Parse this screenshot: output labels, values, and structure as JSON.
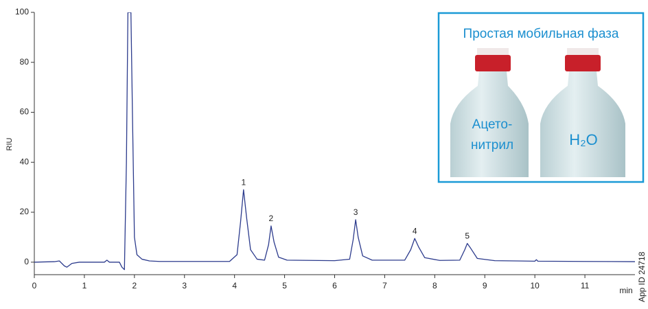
{
  "chart_data": {
    "type": "line",
    "ylabel": "RIU",
    "xlabel": "min",
    "x": [
      0,
      0.4,
      0.5,
      0.6,
      0.65,
      0.75,
      0.9,
      1.4,
      1.45,
      1.5,
      1.7,
      1.75,
      1.8,
      1.84,
      1.87,
      1.9,
      1.93,
      1.96,
      2.0,
      2.05,
      2.15,
      2.3,
      2.5,
      3,
      3.9,
      4.05,
      4.12,
      4.18,
      4.24,
      4.32,
      4.45,
      4.6,
      4.68,
      4.73,
      4.79,
      4.88,
      5.05,
      6.0,
      6.3,
      6.37,
      6.42,
      6.47,
      6.56,
      6.75,
      7.4,
      7.52,
      7.6,
      7.68,
      7.8,
      8.1,
      8.5,
      8.6,
      8.65,
      8.72,
      8.85,
      9.2,
      10,
      10.03,
      10.06,
      11,
      12
    ],
    "series": [
      {
        "color": "#2b3a8c",
        "values": [
          0,
          0.2,
          0.5,
          -1.5,
          -2,
          -0.5,
          0,
          0,
          0.8,
          0,
          0,
          -2,
          -3,
          40,
          100,
          100,
          100,
          60,
          10,
          3,
          1.2,
          0.5,
          0.3,
          0.3,
          0.3,
          3,
          16,
          29,
          18,
          5,
          1.2,
          0.8,
          7,
          14.5,
          8,
          2,
          0.8,
          0.6,
          1.2,
          9,
          17,
          10,
          2.5,
          0.8,
          0.8,
          5,
          9.5,
          6,
          1.8,
          0.7,
          0.8,
          5,
          7.5,
          5.5,
          1.5,
          0.6,
          0.4,
          1,
          0.4,
          0.3,
          0.2
        ]
      }
    ],
    "xlim": [
      0,
      12
    ],
    "ylim": [
      -5,
      100
    ],
    "xticks": [
      0,
      1,
      2,
      3,
      4,
      5,
      6,
      7,
      8,
      9,
      10,
      11
    ],
    "yticks": [
      0,
      20,
      40,
      60,
      80,
      100
    ],
    "annotations": [
      {
        "text": "1",
        "x": 4.18,
        "y": 29
      },
      {
        "text": "2",
        "x": 4.73,
        "y": 14.5
      },
      {
        "text": "3",
        "x": 6.42,
        "y": 17
      },
      {
        "text": "4",
        "x": 7.6,
        "y": 9.5
      },
      {
        "text": "5",
        "x": 8.65,
        "y": 7.5
      }
    ]
  },
  "inset": {
    "title": "Простая мобильная фаза",
    "left_label": [
      "Ацето-",
      "нитрил"
    ],
    "right_label": "H₂O"
  },
  "side_note": "App ID 24718"
}
